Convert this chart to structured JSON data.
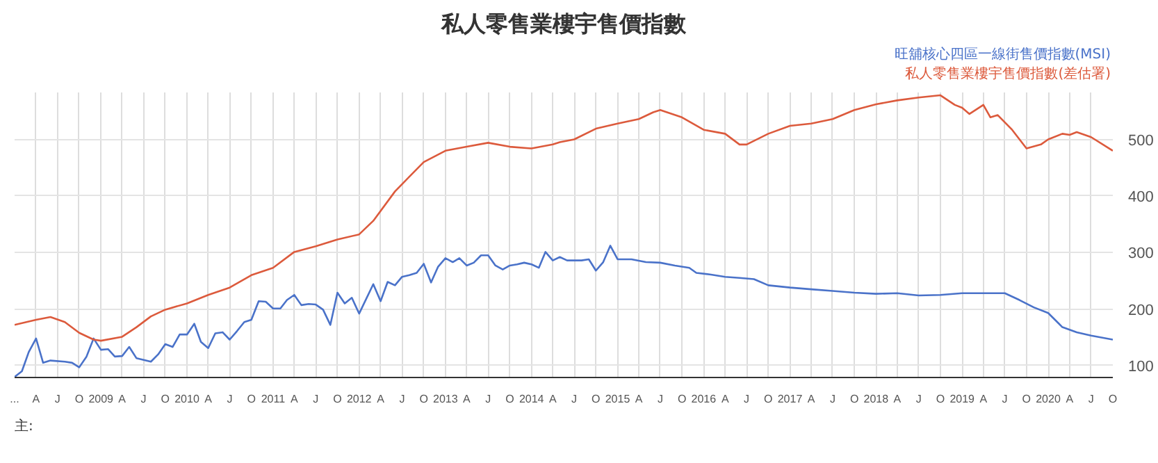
{
  "chart_data": {
    "type": "line",
    "title": "私人零售業樓宇售價指數",
    "annotations": [
      "主:"
    ],
    "xlim": [
      "2008-01",
      "2020-10"
    ],
    "ylim": [
      79,
      583
    ],
    "yticks": [
      100,
      200,
      300,
      400,
      500
    ],
    "xticks": [
      {
        "value": "2008-01",
        "label": "..."
      },
      {
        "value": "2008-04",
        "label": "A"
      },
      {
        "value": "2008-07",
        "label": "J"
      },
      {
        "value": "2008-10",
        "label": "O"
      },
      {
        "value": "2009-01",
        "label": "2009"
      },
      {
        "value": "2009-04",
        "label": "A"
      },
      {
        "value": "2009-07",
        "label": "J"
      },
      {
        "value": "2009-10",
        "label": "O"
      },
      {
        "value": "2010-01",
        "label": "2010"
      },
      {
        "value": "2010-04",
        "label": "A"
      },
      {
        "value": "2010-07",
        "label": "J"
      },
      {
        "value": "2010-10",
        "label": "O"
      },
      {
        "value": "2011-01",
        "label": "2011"
      },
      {
        "value": "2011-04",
        "label": "A"
      },
      {
        "value": "2011-07",
        "label": "J"
      },
      {
        "value": "2011-10",
        "label": "O"
      },
      {
        "value": "2012-01",
        "label": "2012"
      },
      {
        "value": "2012-04",
        "label": "A"
      },
      {
        "value": "2012-07",
        "label": "J"
      },
      {
        "value": "2012-10",
        "label": "O"
      },
      {
        "value": "2013-01",
        "label": "2013"
      },
      {
        "value": "2013-04",
        "label": "A"
      },
      {
        "value": "2013-07",
        "label": "J"
      },
      {
        "value": "2013-10",
        "label": "O"
      },
      {
        "value": "2014-01",
        "label": "2014"
      },
      {
        "value": "2014-04",
        "label": "A"
      },
      {
        "value": "2014-07",
        "label": "J"
      },
      {
        "value": "2014-10",
        "label": "O"
      },
      {
        "value": "2015-01",
        "label": "2015"
      },
      {
        "value": "2015-04",
        "label": "A"
      },
      {
        "value": "2015-07",
        "label": "J"
      },
      {
        "value": "2015-10",
        "label": "O"
      },
      {
        "value": "2016-01",
        "label": "2016"
      },
      {
        "value": "2016-04",
        "label": "A"
      },
      {
        "value": "2016-07",
        "label": "J"
      },
      {
        "value": "2016-10",
        "label": "O"
      },
      {
        "value": "2017-01",
        "label": "2017"
      },
      {
        "value": "2017-04",
        "label": "A"
      },
      {
        "value": "2017-07",
        "label": "J"
      },
      {
        "value": "2017-10",
        "label": "O"
      },
      {
        "value": "2018-01",
        "label": "2018"
      },
      {
        "value": "2018-04",
        "label": "A"
      },
      {
        "value": "2018-07",
        "label": "J"
      },
      {
        "value": "2018-10",
        "label": "O"
      },
      {
        "value": "2019-01",
        "label": "2019"
      },
      {
        "value": "2019-04",
        "label": "A"
      },
      {
        "value": "2019-07",
        "label": "J"
      },
      {
        "value": "2019-10",
        "label": "O"
      },
      {
        "value": "2020-01",
        "label": "2020"
      },
      {
        "value": "2020-04",
        "label": "A"
      },
      {
        "value": "2020-07",
        "label": "J"
      },
      {
        "value": "2020-10",
        "label": "O"
      }
    ],
    "grid": true,
    "legend": "top right",
    "marker": "none",
    "line_style": "solid",
    "series": [
      {
        "name": "旺舖核心四區一線街售價指數(MSI)",
        "color": "#4a72c9",
        "x": [
          "2008-01",
          "2008-02",
          "2008-03",
          "2008-04",
          "2008-05",
          "2008-06",
          "2008-08",
          "2008-09",
          "2008-10",
          "2008-11",
          "2008-12",
          "2009-01",
          "2009-02",
          "2009-03",
          "2009-04",
          "2009-05",
          "2009-06",
          "2009-08",
          "2009-09",
          "2009-10",
          "2009-11",
          "2009-12",
          "2010-01",
          "2010-02",
          "2010-03",
          "2010-04",
          "2010-05",
          "2010-06",
          "2010-07",
          "2010-08",
          "2010-09",
          "2010-10",
          "2010-11",
          "2010-12",
          "2011-01",
          "2011-02",
          "2011-03",
          "2011-04",
          "2011-05",
          "2011-06",
          "2011-07",
          "2011-08",
          "2011-09",
          "2011-10",
          "2011-11",
          "2011-12",
          "2012-01",
          "2012-03",
          "2012-04",
          "2012-05",
          "2012-06",
          "2012-07",
          "2012-08",
          "2012-09",
          "2012-10",
          "2012-11",
          "2012-12",
          "2013-01",
          "2013-02",
          "2013-03",
          "2013-04",
          "2013-05",
          "2013-06",
          "2013-07",
          "2013-08",
          "2013-09",
          "2013-10",
          "2013-11",
          "2013-12",
          "2014-01",
          "2014-02",
          "2014-03",
          "2014-04",
          "2014-05",
          "2014-06",
          "2014-08",
          "2014-09",
          "2014-10",
          "2014-11",
          "2014-12",
          "2015-01",
          "2015-03",
          "2015-05",
          "2015-07",
          "2015-09",
          "2015-11",
          "2015-12",
          "2016-02",
          "2016-04",
          "2016-06",
          "2016-08",
          "2016-10",
          "2017-01",
          "2017-04",
          "2017-07",
          "2017-10",
          "2018-01",
          "2018-04",
          "2018-07",
          "2018-10",
          "2019-01",
          "2019-04",
          "2019-07",
          "2019-09",
          "2019-11",
          "2020-01",
          "2020-03",
          "2020-05",
          "2020-07",
          "2020-10"
        ],
        "values": [
          80,
          90,
          124,
          148,
          105,
          109,
          107,
          105,
          97,
          116,
          148,
          128,
          129,
          116,
          117,
          133,
          113,
          107,
          120,
          138,
          133,
          155,
          155,
          174,
          142,
          131,
          157,
          159,
          146,
          161,
          177,
          181,
          214,
          213,
          201,
          201,
          216,
          225,
          207,
          209,
          208,
          199,
          172,
          229,
          210,
          220,
          192,
          244,
          214,
          248,
          242,
          257,
          260,
          264,
          280,
          247,
          275,
          290,
          283,
          290,
          277,
          282,
          295,
          295,
          277,
          270,
          277,
          279,
          282,
          279,
          273,
          301,
          286,
          292,
          286,
          286,
          288,
          268,
          283,
          312,
          288,
          288,
          283,
          282,
          277,
          273,
          264,
          261,
          257,
          255,
          253,
          242,
          238,
          235,
          232,
          229,
          227,
          228,
          224,
          225,
          228,
          228,
          228,
          216,
          203,
          193,
          168,
          159,
          153,
          146
        ]
      },
      {
        "name": "私人零售業樓宇售價指數(差估署)",
        "color": "#dc5a3c",
        "x": [
          "2008-01",
          "2008-04",
          "2008-06",
          "2008-08",
          "2008-10",
          "2008-12",
          "2009-01",
          "2009-04",
          "2009-06",
          "2009-08",
          "2009-10",
          "2010-01",
          "2010-04",
          "2010-07",
          "2010-10",
          "2011-01",
          "2011-04",
          "2011-07",
          "2011-10",
          "2012-01",
          "2012-03",
          "2012-06",
          "2012-08",
          "2012-10",
          "2013-01",
          "2013-04",
          "2013-07",
          "2013-10",
          "2014-01",
          "2014-04",
          "2014-05",
          "2014-07",
          "2014-10",
          "2015-01",
          "2015-04",
          "2015-06",
          "2015-07",
          "2015-10",
          "2016-01",
          "2016-04",
          "2016-06",
          "2016-07",
          "2016-10",
          "2017-01",
          "2017-04",
          "2017-07",
          "2017-10",
          "2018-01",
          "2018-04",
          "2018-07",
          "2018-10",
          "2018-12",
          "2019-01",
          "2019-02",
          "2019-04",
          "2019-05",
          "2019-06",
          "2019-08",
          "2019-10",
          "2019-12",
          "2020-01",
          "2020-03",
          "2020-04",
          "2020-05",
          "2020-07",
          "2020-10"
        ],
        "values": [
          172,
          181,
          186,
          177,
          158,
          146,
          144,
          151,
          168,
          187,
          199,
          210,
          225,
          238,
          260,
          273,
          301,
          311,
          323,
          332,
          356,
          408,
          434,
          460,
          480,
          487,
          494,
          487,
          484,
          491,
          495,
          500,
          519,
          528,
          536,
          548,
          552,
          539,
          517,
          510,
          491,
          491,
          510,
          524,
          528,
          536,
          552,
          562,
          569,
          574,
          578,
          561,
          556,
          545,
          561,
          539,
          543,
          517,
          484,
          491,
          500,
          510,
          508,
          513,
          504,
          480
        ]
      }
    ]
  }
}
